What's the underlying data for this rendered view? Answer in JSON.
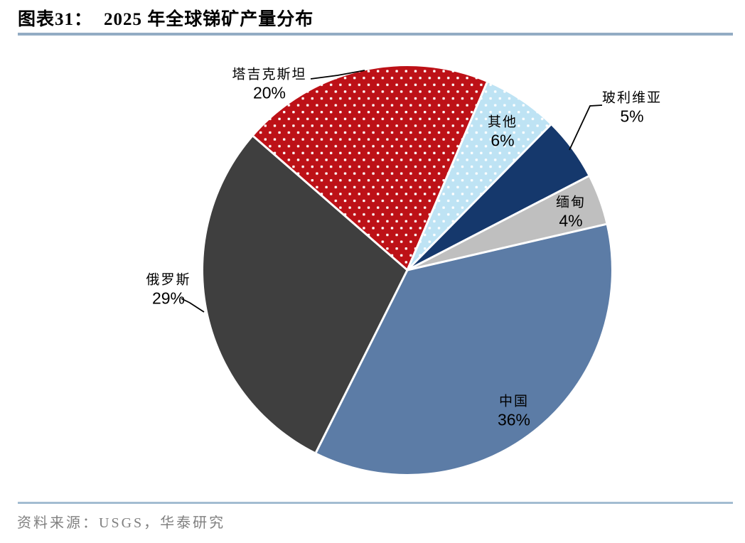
{
  "page": {
    "background": "#FFFFFF"
  },
  "header": {
    "tag": "图表31：",
    "title": "2025 年全球锑矿产量分布",
    "underline_color": "#93ACC4"
  },
  "footer": {
    "source": "资料来源：USGS，华泰研究",
    "line_color": "#A3BCD1",
    "text_color": "#808080"
  },
  "chart_data": {
    "type": "pie",
    "title": "2025 年全球锑矿产量分布",
    "start_angle_deg": 77,
    "direction": "clockwise",
    "total": 100,
    "legend": "none",
    "slices": [
      {
        "id": "china",
        "label": "中国",
        "value": 36,
        "pct_label": "36%",
        "color": "#5C7CA6",
        "fill_style": "solid",
        "label_placement": "inside"
      },
      {
        "id": "russia",
        "label": "俄罗斯",
        "value": 29,
        "pct_label": "29%",
        "color": "#3F3F3F",
        "fill_style": "solid",
        "label_placement": "outside-left"
      },
      {
        "id": "tajikistan",
        "label": "塔吉克斯坦",
        "value": 20,
        "pct_label": "20%",
        "color": "#BD1117",
        "fill_style": "white-dots",
        "pattern": "patRedDots",
        "dot_color": "#FFFFFF",
        "label_placement": "outside-top"
      },
      {
        "id": "others",
        "label": "其他",
        "value": 6,
        "pct_label": "6%",
        "color": "#BEE3F4",
        "fill_style": "white-dots",
        "pattern": "patBlueDots",
        "dot_color": "#FFFFFF",
        "label_placement": "inside"
      },
      {
        "id": "bolivia",
        "label": "玻利维亚",
        "value": 5,
        "pct_label": "5%",
        "color": "#15386C",
        "fill_style": "solid",
        "label_placement": "outside-right"
      },
      {
        "id": "myanmar",
        "label": "缅甸",
        "value": 4,
        "pct_label": "4%",
        "color": "#BFBFBF",
        "fill_style": "solid",
        "label_placement": "inside"
      }
    ],
    "leader_line_color": "#000000"
  }
}
